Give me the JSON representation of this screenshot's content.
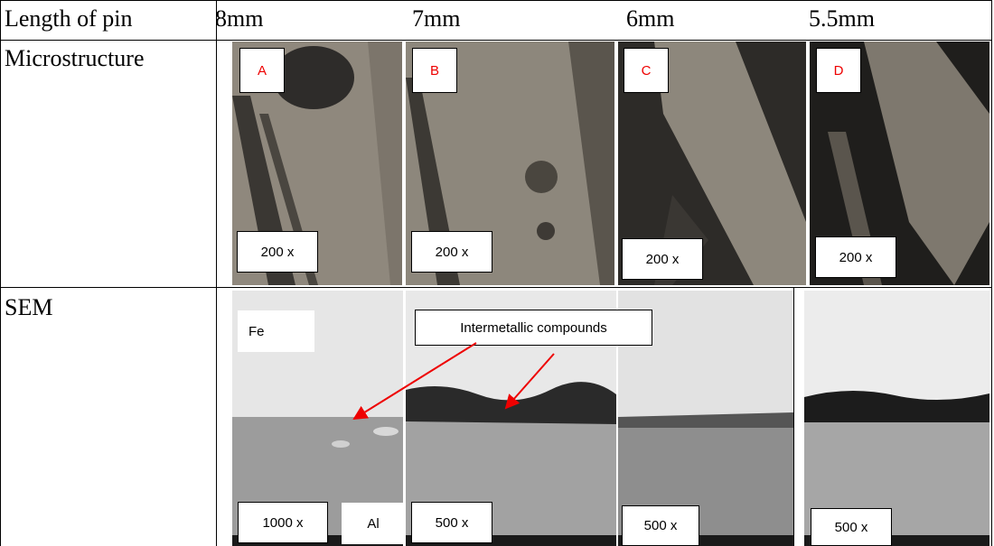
{
  "table": {
    "header": [
      "Length of pin",
      "8mm",
      "7mm",
      "6mm",
      "5.5mm"
    ],
    "rows": [
      {
        "label": "Microstructure",
        "panels": [
          {
            "tag": "A",
            "magnification": "200 x"
          },
          {
            "tag": "B",
            "magnification": "200 x"
          },
          {
            "tag": "C",
            "magnification": "200 x"
          },
          {
            "tag": "D",
            "magnification": "200 x"
          }
        ]
      },
      {
        "label": "SEM",
        "panels": [
          {
            "magnification": "1000 x"
          },
          {
            "magnification": "500 x"
          },
          {
            "magnification": "500 x"
          },
          {
            "magnification": "500 x"
          }
        ],
        "annotations": {
          "fe": "Fe",
          "al": "Al",
          "compounds": "Intermetallic compounds"
        }
      }
    ]
  }
}
